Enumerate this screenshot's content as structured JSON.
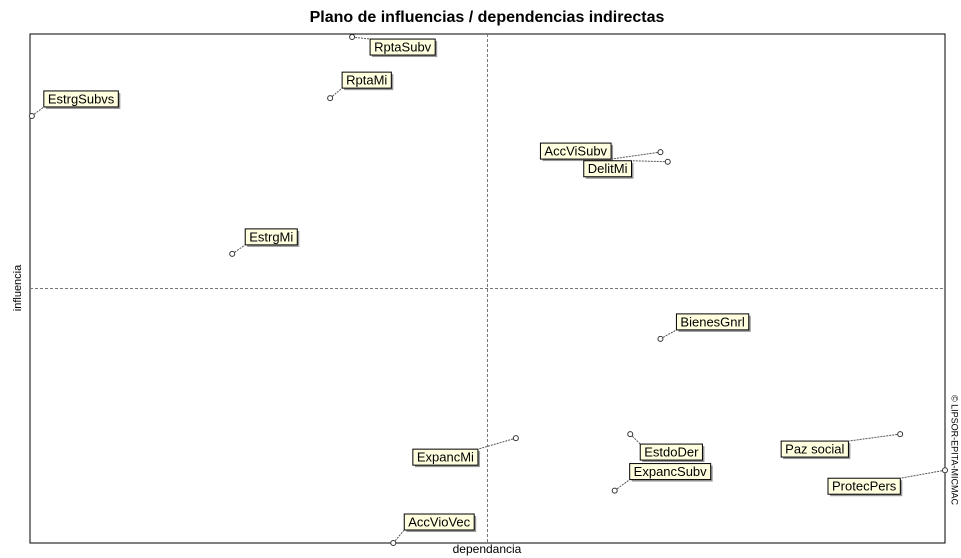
{
  "chart_data": {
    "type": "scatter",
    "title": "Plano de influencias / dependencias indirectas",
    "xlabel": "dependancia",
    "ylabel": "influencia",
    "watermark": "© LIPSOR-EPITA-MICMAC",
    "point_labels": [
      "RptaSubv",
      "RptaMi",
      "EstrgSubvs",
      "AccViSubv",
      "DelitMi",
      "EstrgMi",
      "BienesGnrl",
      "ExpancMi",
      "EstdoDer",
      "ExpancSubv",
      "Paz social",
      "ProtecPers",
      "AccVioVec"
    ],
    "x": [
      35.2,
      32.8,
      0.2,
      68.9,
      69.7,
      22.1,
      68.9,
      53.1,
      65.6,
      63.9,
      95.1,
      100,
      39.7
    ],
    "y": [
      99.4,
      87.4,
      83.9,
      76.8,
      74.9,
      56.8,
      40.1,
      20.6,
      21.4,
      10.3,
      21.4,
      14.3,
      0
    ],
    "xlim": [
      0,
      100
    ],
    "ylim": [
      0,
      100
    ],
    "color": "#ffffe0"
  }
}
